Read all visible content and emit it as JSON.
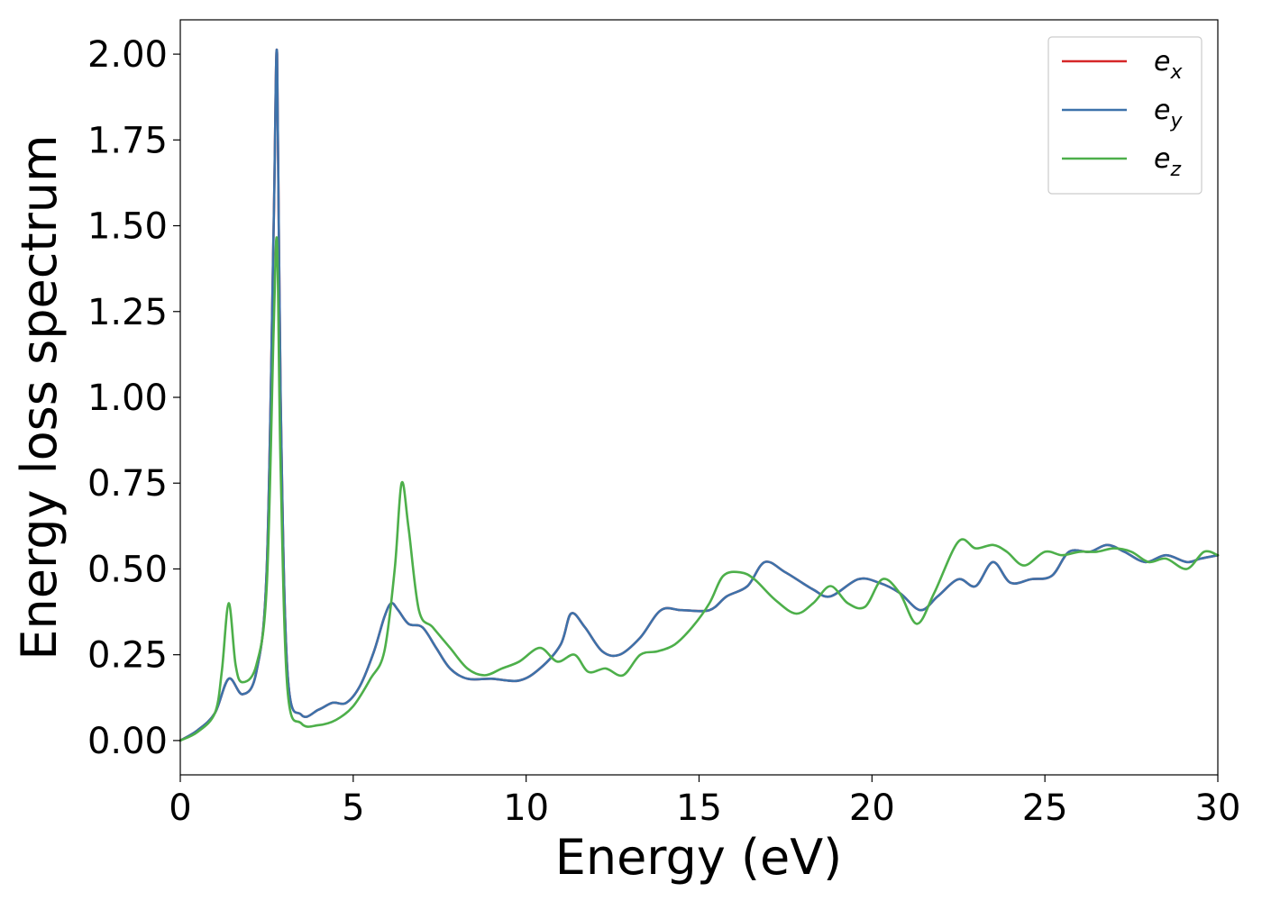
{
  "chart_data": {
    "type": "line",
    "xlabel": "Energy (eV)",
    "ylabel": "Energy loss spectrum",
    "xlim": [
      0,
      30
    ],
    "ylim": [
      -0.1,
      2.1
    ],
    "xticks": [
      0,
      5,
      10,
      15,
      20,
      25,
      30
    ],
    "yticks": [
      0.0,
      0.25,
      0.5,
      0.75,
      1.0,
      1.25,
      1.5,
      1.75,
      2.0
    ],
    "xtick_labels": [
      "0",
      "5",
      "10",
      "15",
      "20",
      "25",
      "30"
    ],
    "ytick_labels": [
      "0.00",
      "0.25",
      "0.50",
      "0.75",
      "1.00",
      "1.25",
      "1.50",
      "1.75",
      "2.00"
    ],
    "grid": false,
    "legend_position": "top-right",
    "series": [
      {
        "name": "e",
        "subscript": "x",
        "color": "#d62728",
        "points": [
          [
            0,
            0
          ],
          [
            0.5,
            0.03
          ],
          [
            1.0,
            0.08
          ],
          [
            1.4,
            0.18
          ],
          [
            1.8,
            0.135
          ],
          [
            2.2,
            0.2
          ],
          [
            2.5,
            0.5
          ],
          [
            2.7,
            1.5
          ],
          [
            2.8,
            2.0
          ],
          [
            2.9,
            1.0
          ],
          [
            3.1,
            0.2
          ],
          [
            3.5,
            0.075
          ],
          [
            4.0,
            0.09
          ],
          [
            4.4,
            0.11
          ],
          [
            4.8,
            0.11
          ],
          [
            5.2,
            0.16
          ],
          [
            5.6,
            0.26
          ],
          [
            5.9,
            0.36
          ],
          [
            6.1,
            0.4
          ],
          [
            6.3,
            0.38
          ],
          [
            6.6,
            0.34
          ],
          [
            7.0,
            0.33
          ],
          [
            7.4,
            0.27
          ],
          [
            7.8,
            0.21
          ],
          [
            8.3,
            0.18
          ],
          [
            9.0,
            0.18
          ],
          [
            9.8,
            0.175
          ],
          [
            10.4,
            0.21
          ],
          [
            11.0,
            0.28
          ],
          [
            11.3,
            0.37
          ],
          [
            11.7,
            0.33
          ],
          [
            12.2,
            0.26
          ],
          [
            12.7,
            0.25
          ],
          [
            13.3,
            0.3
          ],
          [
            13.9,
            0.38
          ],
          [
            14.5,
            0.38
          ],
          [
            15.3,
            0.38
          ],
          [
            15.8,
            0.42
          ],
          [
            16.4,
            0.45
          ],
          [
            16.9,
            0.52
          ],
          [
            17.5,
            0.49
          ],
          [
            18.3,
            0.44
          ],
          [
            18.8,
            0.42
          ],
          [
            19.6,
            0.47
          ],
          [
            20.2,
            0.46
          ],
          [
            20.8,
            0.43
          ],
          [
            21.4,
            0.38
          ],
          [
            21.9,
            0.42
          ],
          [
            22.5,
            0.47
          ],
          [
            23.0,
            0.45
          ],
          [
            23.5,
            0.52
          ],
          [
            24.0,
            0.46
          ],
          [
            24.6,
            0.47
          ],
          [
            25.2,
            0.48
          ],
          [
            25.7,
            0.55
          ],
          [
            26.3,
            0.55
          ],
          [
            26.8,
            0.57
          ],
          [
            27.3,
            0.55
          ],
          [
            27.9,
            0.52
          ],
          [
            28.5,
            0.54
          ],
          [
            29.1,
            0.52
          ],
          [
            29.5,
            0.53
          ],
          [
            30.0,
            0.54
          ]
        ]
      },
      {
        "name": "e",
        "subscript": "y",
        "color": "#3d72aa",
        "points": [
          [
            0,
            0
          ],
          [
            0.5,
            0.03
          ],
          [
            1.0,
            0.08
          ],
          [
            1.4,
            0.18
          ],
          [
            1.8,
            0.135
          ],
          [
            2.2,
            0.2
          ],
          [
            2.5,
            0.5
          ],
          [
            2.7,
            1.5
          ],
          [
            2.8,
            2.0
          ],
          [
            2.9,
            1.0
          ],
          [
            3.1,
            0.2
          ],
          [
            3.5,
            0.075
          ],
          [
            4.0,
            0.09
          ],
          [
            4.4,
            0.11
          ],
          [
            4.8,
            0.11
          ],
          [
            5.2,
            0.16
          ],
          [
            5.6,
            0.26
          ],
          [
            5.9,
            0.36
          ],
          [
            6.1,
            0.4
          ],
          [
            6.3,
            0.38
          ],
          [
            6.6,
            0.34
          ],
          [
            7.0,
            0.33
          ],
          [
            7.4,
            0.27
          ],
          [
            7.8,
            0.21
          ],
          [
            8.3,
            0.18
          ],
          [
            9.0,
            0.18
          ],
          [
            9.8,
            0.175
          ],
          [
            10.4,
            0.21
          ],
          [
            11.0,
            0.28
          ],
          [
            11.3,
            0.37
          ],
          [
            11.7,
            0.33
          ],
          [
            12.2,
            0.26
          ],
          [
            12.7,
            0.25
          ],
          [
            13.3,
            0.3
          ],
          [
            13.9,
            0.38
          ],
          [
            14.5,
            0.38
          ],
          [
            15.3,
            0.38
          ],
          [
            15.8,
            0.42
          ],
          [
            16.4,
            0.45
          ],
          [
            16.9,
            0.52
          ],
          [
            17.5,
            0.49
          ],
          [
            18.3,
            0.44
          ],
          [
            18.8,
            0.42
          ],
          [
            19.6,
            0.47
          ],
          [
            20.2,
            0.46
          ],
          [
            20.8,
            0.43
          ],
          [
            21.4,
            0.38
          ],
          [
            21.9,
            0.42
          ],
          [
            22.5,
            0.47
          ],
          [
            23.0,
            0.45
          ],
          [
            23.5,
            0.52
          ],
          [
            24.0,
            0.46
          ],
          [
            24.6,
            0.47
          ],
          [
            25.2,
            0.48
          ],
          [
            25.7,
            0.55
          ],
          [
            26.3,
            0.55
          ],
          [
            26.8,
            0.57
          ],
          [
            27.3,
            0.55
          ],
          [
            27.9,
            0.52
          ],
          [
            28.5,
            0.54
          ],
          [
            29.1,
            0.52
          ],
          [
            29.5,
            0.53
          ],
          [
            30.0,
            0.54
          ]
        ]
      },
      {
        "name": "e",
        "subscript": "z",
        "color": "#4daf4a",
        "points": [
          [
            0,
            0
          ],
          [
            0.5,
            0.025
          ],
          [
            1.0,
            0.08
          ],
          [
            1.2,
            0.2
          ],
          [
            1.4,
            0.4
          ],
          [
            1.6,
            0.22
          ],
          [
            1.8,
            0.17
          ],
          [
            2.2,
            0.22
          ],
          [
            2.5,
            0.45
          ],
          [
            2.7,
            1.2
          ],
          [
            2.8,
            1.45
          ],
          [
            2.9,
            0.8
          ],
          [
            3.1,
            0.15
          ],
          [
            3.5,
            0.05
          ],
          [
            4.0,
            0.045
          ],
          [
            4.5,
            0.06
          ],
          [
            5.0,
            0.1
          ],
          [
            5.5,
            0.18
          ],
          [
            5.9,
            0.26
          ],
          [
            6.2,
            0.5
          ],
          [
            6.4,
            0.75
          ],
          [
            6.6,
            0.62
          ],
          [
            6.9,
            0.38
          ],
          [
            7.3,
            0.33
          ],
          [
            7.8,
            0.27
          ],
          [
            8.3,
            0.21
          ],
          [
            8.8,
            0.19
          ],
          [
            9.3,
            0.21
          ],
          [
            9.8,
            0.23
          ],
          [
            10.4,
            0.27
          ],
          [
            10.9,
            0.23
          ],
          [
            11.4,
            0.25
          ],
          [
            11.8,
            0.2
          ],
          [
            12.3,
            0.21
          ],
          [
            12.8,
            0.19
          ],
          [
            13.3,
            0.25
          ],
          [
            13.8,
            0.26
          ],
          [
            14.3,
            0.28
          ],
          [
            14.8,
            0.33
          ],
          [
            15.3,
            0.4
          ],
          [
            15.7,
            0.48
          ],
          [
            16.2,
            0.49
          ],
          [
            16.6,
            0.47
          ],
          [
            17.2,
            0.41
          ],
          [
            17.8,
            0.37
          ],
          [
            18.3,
            0.4
          ],
          [
            18.8,
            0.45
          ],
          [
            19.3,
            0.4
          ],
          [
            19.8,
            0.39
          ],
          [
            20.3,
            0.47
          ],
          [
            20.8,
            0.43
          ],
          [
            21.3,
            0.34
          ],
          [
            21.8,
            0.43
          ],
          [
            22.5,
            0.58
          ],
          [
            23.0,
            0.56
          ],
          [
            23.5,
            0.57
          ],
          [
            23.9,
            0.55
          ],
          [
            24.4,
            0.51
          ],
          [
            25.0,
            0.55
          ],
          [
            25.5,
            0.54
          ],
          [
            26.0,
            0.55
          ],
          [
            26.5,
            0.55
          ],
          [
            27.0,
            0.56
          ],
          [
            27.5,
            0.55
          ],
          [
            28.0,
            0.52
          ],
          [
            28.5,
            0.53
          ],
          [
            29.1,
            0.5
          ],
          [
            29.6,
            0.55
          ],
          [
            30.0,
            0.54
          ]
        ]
      }
    ]
  }
}
